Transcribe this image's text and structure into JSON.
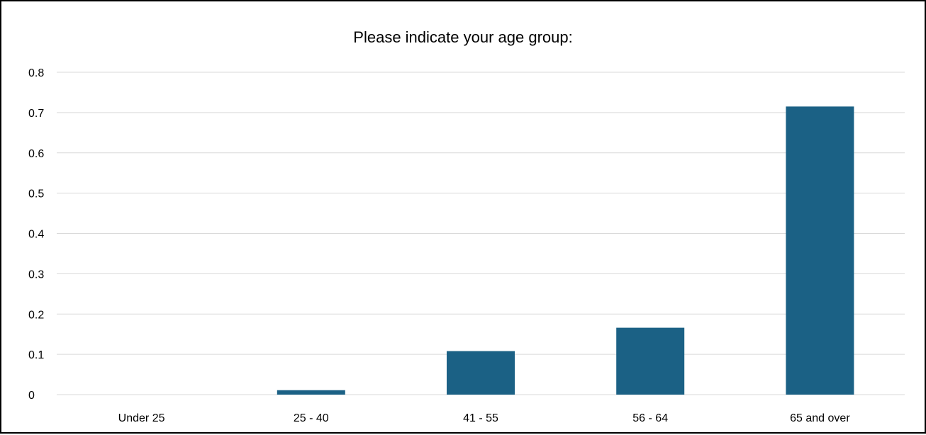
{
  "chart_data": {
    "type": "bar",
    "title": "Please indicate your age group:",
    "categories": [
      "Under 25",
      "25 - 40",
      "41 - 55",
      "56 - 64",
      "65 and over"
    ],
    "values": [
      0,
      0.011,
      0.108,
      0.166,
      0.715
    ],
    "xlabel": "",
    "ylabel": "",
    "ylim": [
      0,
      0.8
    ],
    "yticks": [
      "0",
      "0.1",
      "0.2",
      "0.3",
      "0.4",
      "0.5",
      "0.6",
      "0.7",
      "0.8"
    ],
    "grid": true,
    "legend": "none",
    "bar_color": "#1b6185",
    "gridline_color": "#d9d9d9"
  }
}
